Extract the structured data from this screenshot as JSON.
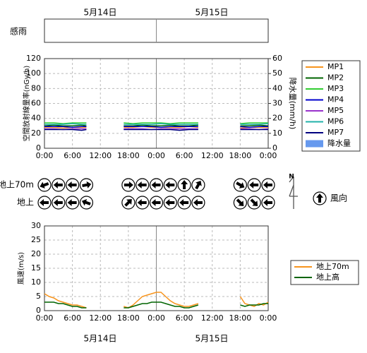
{
  "date_labels": [
    "5月14日",
    "5月15日"
  ],
  "rain_panel": {
    "label": "感雨"
  },
  "chart_data": [
    {
      "type": "line",
      "ylabel": "空間放射線量率(nGy/h)",
      "y2label": "降水量(mm/h)",
      "x": [
        0,
        2,
        4,
        6,
        8,
        9,
        13,
        17,
        19,
        21,
        23,
        25,
        27,
        29,
        31,
        33,
        38,
        42,
        44,
        46,
        48
      ],
      "xlim": [
        0,
        48
      ],
      "xticks": [
        {
          "value": 0,
          "label": "0:00"
        },
        {
          "value": 6,
          "label": "6:00"
        },
        {
          "value": 12,
          "label": "12:00"
        },
        {
          "value": 18,
          "label": "18:00"
        },
        {
          "value": 24,
          "label": "0:00"
        },
        {
          "value": 30,
          "label": "6:00"
        },
        {
          "value": 36,
          "label": "12:00"
        },
        {
          "value": 42,
          "label": "18:00"
        },
        {
          "value": 48,
          "label": "0:00"
        }
      ],
      "ylim": [
        0,
        120
      ],
      "yticks": [
        0,
        20,
        40,
        60,
        80,
        100,
        120
      ],
      "y2lim": [
        0,
        60
      ],
      "y2ticks": [
        0,
        10,
        20,
        30,
        40,
        50,
        60
      ],
      "grid": true,
      "series": [
        {
          "name": "MP1",
          "color": "#f7941d",
          "values": [
            28,
            28,
            27,
            28,
            28,
            28,
            null,
            28,
            28,
            29,
            28,
            28,
            28,
            28,
            29,
            28,
            null,
            27,
            28,
            28,
            28
          ]
        },
        {
          "name": "MP2",
          "color": "#006400",
          "values": [
            30,
            31,
            30,
            30,
            31,
            30,
            null,
            30,
            30,
            31,
            30,
            30,
            31,
            30,
            30,
            31,
            null,
            30,
            30,
            31,
            30
          ]
        },
        {
          "name": "MP3",
          "color": "#32cd32",
          "values": [
            34,
            34,
            33,
            34,
            34,
            34,
            null,
            34,
            33,
            34,
            34,
            34,
            33,
            34,
            34,
            34,
            null,
            33,
            34,
            34,
            34
          ]
        },
        {
          "name": "MP4",
          "color": "#0000cd",
          "values": [
            29,
            29,
            29,
            28,
            29,
            29,
            null,
            29,
            29,
            29,
            29,
            28,
            29,
            29,
            29,
            29,
            null,
            29,
            28,
            29,
            29
          ]
        },
        {
          "name": "MP5",
          "color": "#9932cc",
          "values": [
            26,
            26,
            25,
            26,
            26,
            26,
            null,
            26,
            26,
            26,
            25,
            26,
            26,
            26,
            26,
            26,
            null,
            26,
            26,
            25,
            26
          ]
        },
        {
          "name": "MP6",
          "color": "#20b2aa",
          "values": [
            32,
            32,
            32,
            33,
            32,
            32,
            null,
            32,
            32,
            32,
            32,
            33,
            32,
            32,
            32,
            32,
            null,
            32,
            32,
            32,
            33
          ]
        },
        {
          "name": "MP7",
          "color": "#000080",
          "values": [
            25,
            25,
            25,
            25,
            24,
            25,
            null,
            25,
            25,
            25,
            25,
            25,
            25,
            24,
            25,
            25,
            null,
            25,
            25,
            25,
            25
          ]
        },
        {
          "name": "降水量",
          "color": "#6699ee",
          "type": "bar",
          "axis": "y2",
          "values": [
            0,
            0,
            0,
            0,
            0,
            0,
            null,
            0,
            0,
            0,
            0,
            0,
            0,
            0,
            0,
            0,
            null,
            0,
            0,
            0,
            0
          ]
        }
      ]
    },
    {
      "type": "wind-direction",
      "north_label": "N",
      "legend_label": "風向",
      "x": [
        0,
        3,
        6,
        9,
        18,
        21,
        24,
        27,
        30,
        33,
        42,
        45,
        48
      ],
      "xlim": [
        0,
        48
      ],
      "series": [
        {
          "name": "地上70m",
          "values": [
            250,
            270,
            270,
            80,
            90,
            270,
            270,
            270,
            0,
            30,
            120,
            270,
            270
          ]
        },
        {
          "name": "地上",
          "values": [
            270,
            270,
            270,
            290,
            45,
            270,
            270,
            270,
            270,
            270,
            135,
            135,
            270
          ]
        }
      ]
    },
    {
      "type": "line",
      "ylabel": "風速(m/s)",
      "x": [
        0,
        1,
        2,
        3,
        4,
        5,
        6,
        7,
        8,
        9,
        13,
        17,
        18,
        19,
        20,
        21,
        22,
        23,
        24,
        25,
        26,
        27,
        28,
        29,
        30,
        31,
        32,
        33,
        38,
        42,
        43,
        44,
        45,
        46,
        47,
        48
      ],
      "xlim": [
        0,
        48
      ],
      "xticks": [
        {
          "value": 0,
          "label": "0:00"
        },
        {
          "value": 6,
          "label": "6:00"
        },
        {
          "value": 12,
          "label": "12:00"
        },
        {
          "value": 18,
          "label": "18:00"
        },
        {
          "value": 24,
          "label": "0:00"
        },
        {
          "value": 30,
          "label": "6:00"
        },
        {
          "value": 36,
          "label": "12:00"
        },
        {
          "value": 42,
          "label": "18:00"
        },
        {
          "value": 48,
          "label": "0:00"
        }
      ],
      "ylim": [
        0,
        30
      ],
      "yticks": [
        0,
        5,
        10,
        15,
        20,
        25,
        30
      ],
      "grid": true,
      "series": [
        {
          "name": "地上70m",
          "color": "#f7941d",
          "values": [
            6,
            5,
            4.5,
            3.5,
            3,
            2.5,
            2,
            2,
            1.5,
            1,
            null,
            1.5,
            1,
            2,
            3.5,
            5,
            5.5,
            6,
            6.5,
            6.5,
            5,
            3.5,
            2.5,
            2,
            1.5,
            1.5,
            2,
            2.5,
            null,
            5,
            2.5,
            2,
            1.5,
            2.5,
            2,
            3
          ]
        },
        {
          "name": "地上高",
          "color": "#006400",
          "values": [
            3,
            3,
            3,
            2.5,
            2.5,
            2,
            1.5,
            1.5,
            1,
            1,
            null,
            1,
            1,
            1.5,
            2,
            2.5,
            2.5,
            3,
            3,
            3,
            2.5,
            2,
            1.5,
            1.5,
            1,
            1,
            1.5,
            2,
            null,
            2,
            1.5,
            2,
            2,
            2,
            2.5,
            2.5
          ]
        }
      ]
    }
  ]
}
